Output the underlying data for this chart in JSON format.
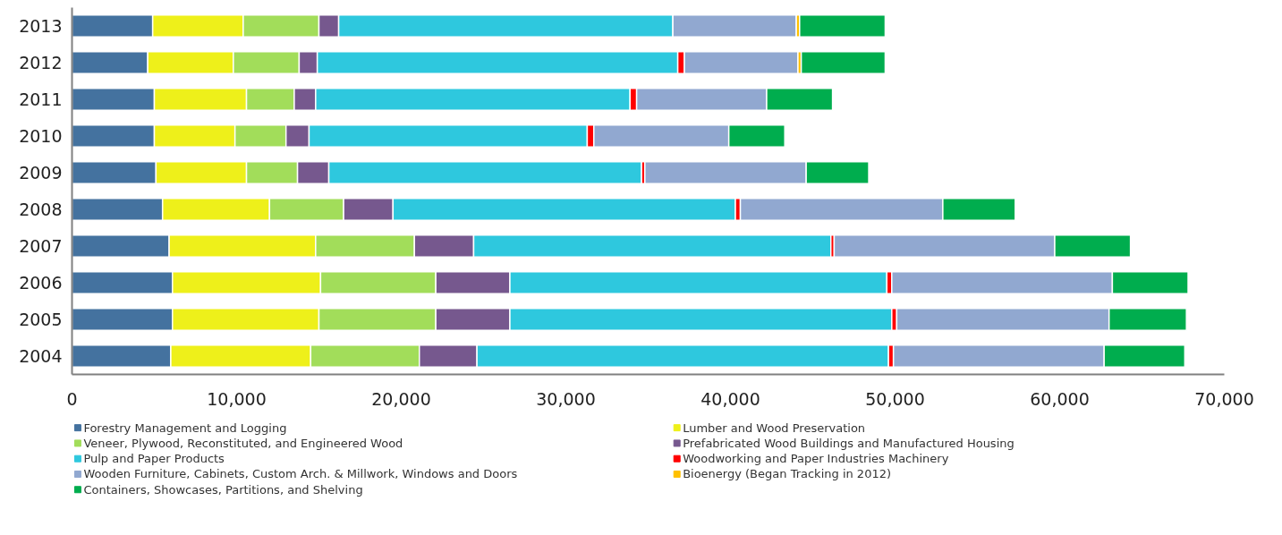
{
  "chart_data": {
    "type": "bar",
    "orientation": "horizontal",
    "stacked": true,
    "categories": [
      "2013",
      "2012",
      "2011",
      "2010",
      "2009",
      "2008",
      "2007",
      "2006",
      "2005",
      "2004"
    ],
    "series": [
      {
        "name": "Forestry Management and Logging",
        "color": "#44729f",
        "values": [
          4900,
          4600,
          5000,
          5000,
          5100,
          5500,
          5900,
          6100,
          6100,
          6000
        ]
      },
      {
        "name": "Lumber and Wood Preservation",
        "color": "#eef01a",
        "values": [
          5500,
          5200,
          5600,
          4900,
          5500,
          6500,
          8900,
          9000,
          8900,
          8500
        ]
      },
      {
        "name": "Veneer, Plywood, Reconstituted, and Engineered Wood",
        "color": "#a2dd5a",
        "values": [
          4600,
          4000,
          2900,
          3100,
          3100,
          4500,
          6000,
          7000,
          7100,
          6600
        ]
      },
      {
        "name": "Prefabricated Wood Buildings and Manufactured Housing",
        "color": "#76588e",
        "values": [
          1200,
          1100,
          1300,
          1400,
          1900,
          3000,
          3600,
          4500,
          4500,
          3500
        ]
      },
      {
        "name": "Pulp and Paper Products",
        "color": "#2ec8de",
        "values": [
          20300,
          21900,
          19100,
          16900,
          19000,
          20800,
          21700,
          22900,
          23200,
          25000
        ]
      },
      {
        "name": "Woodworking and Paper Industries Machinery",
        "color": "#ff0000",
        "values": [
          null,
          400,
          400,
          400,
          200,
          300,
          200,
          300,
          300,
          300
        ]
      },
      {
        "name": "Wooden Furniture, Cabinets, Custom Arch. & Millwork, Windows and Doors",
        "color": "#91a8d0",
        "values": [
          7500,
          6900,
          7900,
          8200,
          9800,
          12300,
          13400,
          13400,
          12900,
          12800
        ]
      },
      {
        "name": "Bioenergy (Began Tracking in 2012)",
        "color": "#ffc000",
        "values": [
          200,
          200,
          null,
          null,
          null,
          null,
          null,
          null,
          null,
          null
        ]
      },
      {
        "name": "Containers, Showcases, Partitions, and Shelving",
        "color": "#00ad4e",
        "values": [
          5200,
          5100,
          4000,
          3400,
          3800,
          4400,
          4600,
          4600,
          4700,
          4900
        ]
      }
    ],
    "xlim": [
      0,
      70000
    ],
    "xticks": [
      0,
      {
        "value": 10000,
        "label": "10,000"
      },
      {
        "value": 20000,
        "label": "20,000"
      },
      {
        "value": 30000,
        "label": "30,000"
      },
      {
        "value": 40000,
        "label": "40,000"
      },
      {
        "value": 50000,
        "label": "50,000"
      },
      {
        "value": 60000,
        "label": "60,000"
      },
      {
        "value": 70000,
        "label": "70,000"
      }
    ],
    "legend": "bottom",
    "grid": false
  }
}
